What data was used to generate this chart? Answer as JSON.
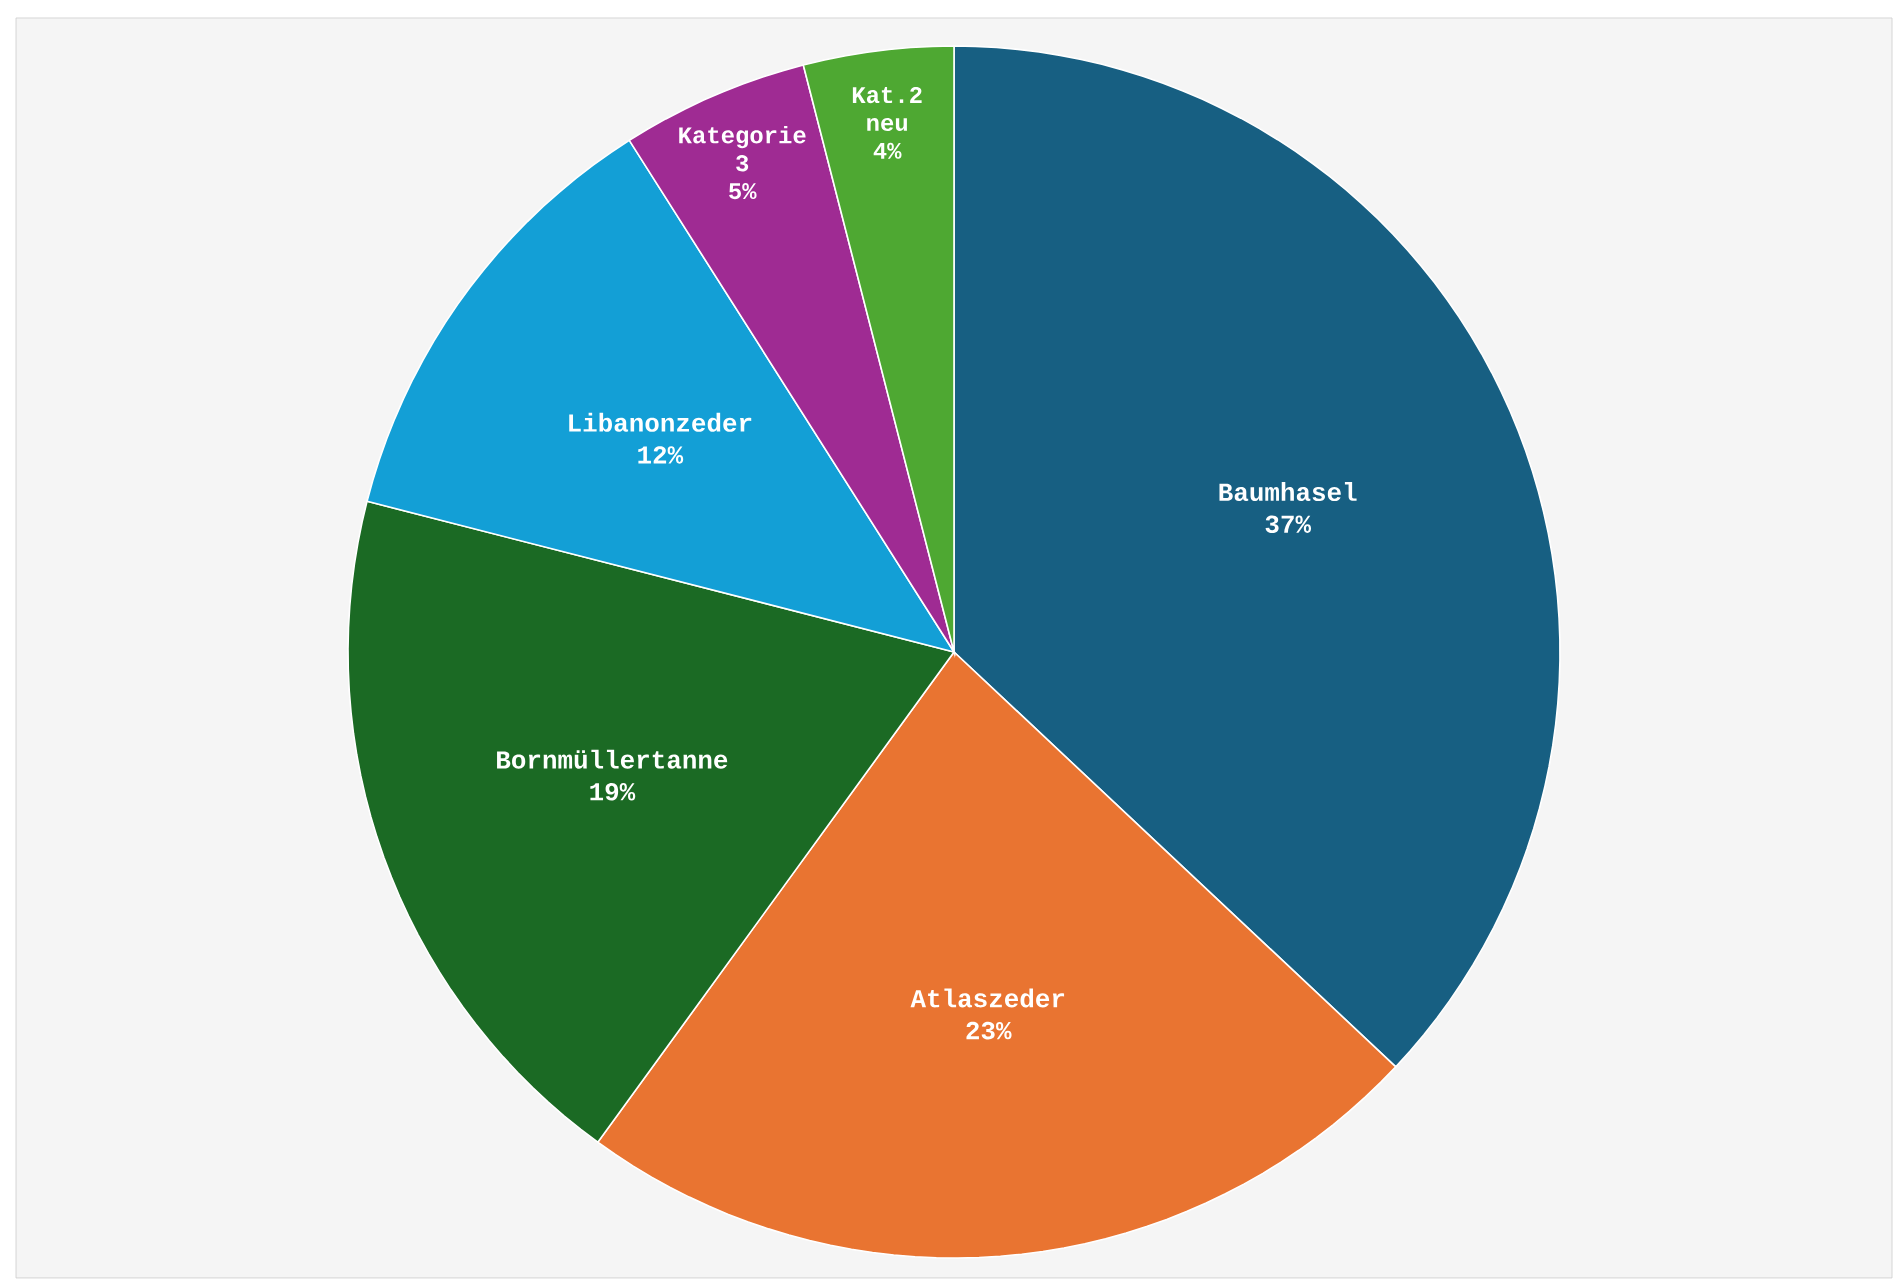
{
  "chart_data": {
    "type": "pie",
    "categories": [
      "Baumhasel",
      "Atlaszeder",
      "Bornmüllertanne",
      "Libanonzeder",
      "Kategorie 3",
      "Kat.2 neu"
    ],
    "values": [
      37,
      23,
      19,
      12,
      5,
      4
    ],
    "value_labels": [
      "37%",
      "23%",
      "19%",
      "12%",
      "5%",
      "4%"
    ],
    "colors": [
      "#175f82",
      "#e97431",
      "#1b6a24",
      "#139fd6",
      "#9f2b93",
      "#4ea832"
    ]
  }
}
